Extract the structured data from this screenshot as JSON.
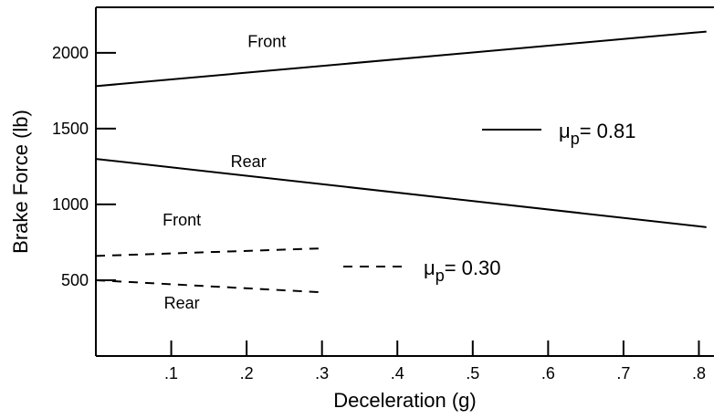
{
  "chart_data": {
    "type": "line",
    "xlabel": "Deceleration (g)",
    "ylabel": "Brake Force (lb)",
    "xlim": [
      0,
      0.82
    ],
    "ylim": [
      0,
      2300
    ],
    "x_ticks": [
      0.1,
      0.2,
      0.3,
      0.4,
      0.5,
      0.6,
      0.7,
      0.8
    ],
    "x_tick_labels": [
      ".1",
      ".2",
      ".3",
      ".4",
      ".5",
      ".6",
      ".7",
      ".8"
    ],
    "y_ticks": [
      500,
      1000,
      1500,
      2000
    ],
    "y_tick_labels": [
      "500",
      "1000",
      "1500",
      "2000"
    ],
    "grid": false,
    "series": [
      {
        "name": "Front",
        "group": "0.81",
        "style": "solid",
        "x": [
          0,
          0.81
        ],
        "y": [
          1780,
          2140
        ]
      },
      {
        "name": "Rear",
        "group": "0.81",
        "style": "solid",
        "x": [
          0,
          0.81
        ],
        "y": [
          1300,
          850
        ]
      },
      {
        "name": "Front",
        "group": "0.30",
        "style": "dashed",
        "x": [
          0,
          0.3
        ],
        "y": [
          660,
          710
        ]
      },
      {
        "name": "Rear",
        "group": "0.30",
        "style": "dashed",
        "x": [
          0,
          0.3
        ],
        "y": [
          500,
          420
        ]
      }
    ],
    "legend": [
      {
        "style": "solid",
        "symbol": "μ",
        "subscript": "p",
        "text": "= 0.81"
      },
      {
        "style": "dashed",
        "symbol": "μ",
        "subscript": "p",
        "text": "= 0.30"
      }
    ]
  }
}
